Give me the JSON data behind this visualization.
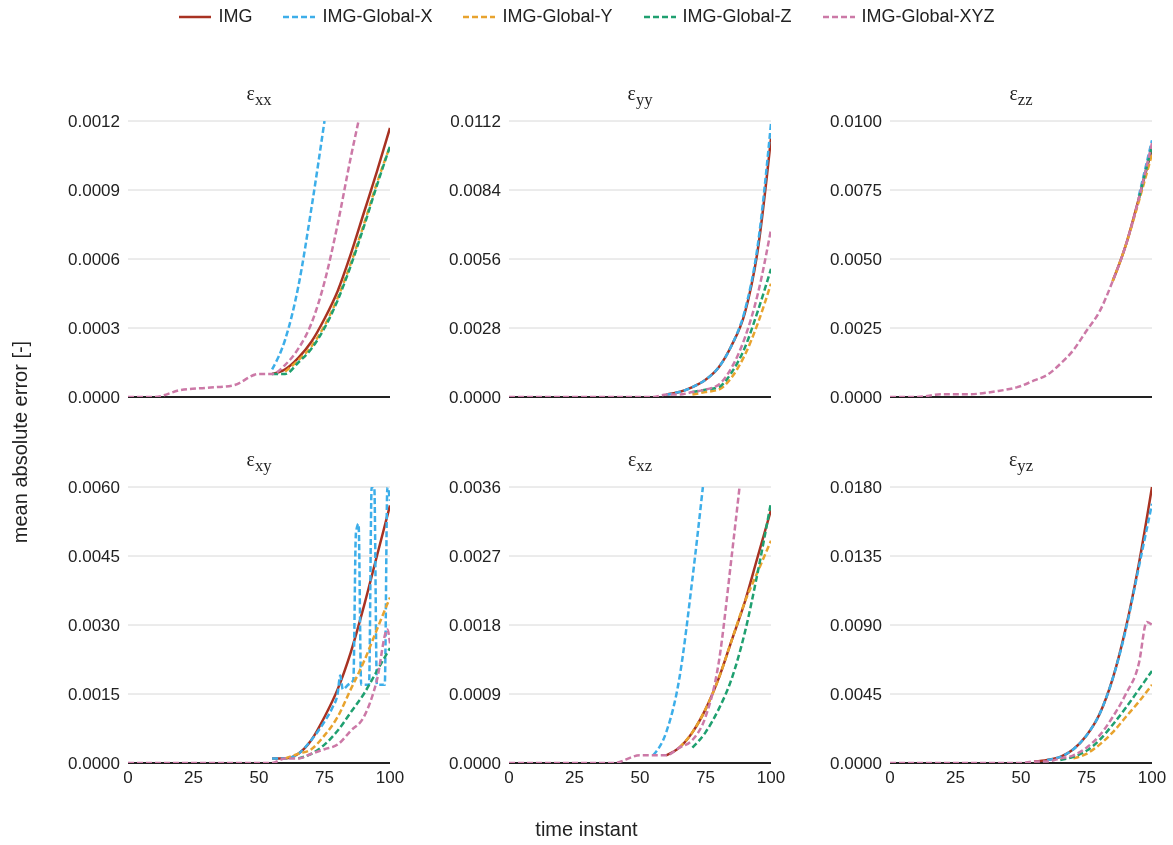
{
  "chart_data": [
    {
      "type": "line",
      "title": "ε$_{xx}$",
      "ylabel": "mean absolute error [-]",
      "legend": "top",
      "grid": "y",
      "tick_labels": "y",
      "xlim": [
        0,
        100
      ],
      "xticks": [
        0,
        25,
        50,
        75,
        100
      ],
      "ylim": [
        0,
        0.0012
      ],
      "yticks": [
        {
          "value": 0,
          "label": "0.0000"
        },
        0.0003,
        0.0006,
        0.0009,
        0.0012
      ],
      "x": [
        55,
        60,
        65,
        70,
        75,
        80,
        85,
        90,
        95,
        100
      ],
      "series": [
        {
          "name": "IMG",
          "color": "#a83222",
          "line_style": "solid",
          "values": [
            0.0001,
            0.00012,
            0.00017,
            0.00024,
            0.00034,
            0.00046,
            0.00062,
            0.0008,
            0.00098,
            0.00117
          ]
        },
        {
          "name": "IMG-Global-X",
          "color": "#3daee9",
          "line_style": "dashed",
          "x": [
            55,
            60,
            65,
            70,
            75
          ],
          "values": [
            0.00012,
            0.00025,
            0.00048,
            0.00082,
            0.0012
          ]
        },
        {
          "name": "IMG-Global-Y",
          "color": "#e8a32e",
          "line_style": "dashed",
          "x": [
            60,
            65,
            70,
            75,
            80,
            85,
            90,
            95,
            100
          ],
          "values": [
            0.00011,
            0.00016,
            0.00022,
            0.00031,
            0.00043,
            0.00058,
            0.00075,
            0.00093,
            0.00109
          ]
        },
        {
          "name": "IMG-Global-Z",
          "color": "#1fa070",
          "line_style": "dashed",
          "values": [
            0.0001,
            0.0001,
            0.00015,
            0.00021,
            0.0003,
            0.00042,
            0.00057,
            0.00074,
            0.00092,
            0.00109
          ]
        },
        {
          "name": "IMG-Global-XYZ",
          "color": "#cc79a7",
          "line_style": "dashed",
          "x": [
            0,
            10,
            20,
            30,
            40,
            50,
            55,
            60,
            65,
            70,
            75,
            80,
            85,
            88
          ],
          "values": [
            0,
            0,
            3e-05,
            4e-05,
            5e-05,
            0.0001,
            0.0001,
            0.00014,
            0.00021,
            0.00032,
            0.0005,
            0.00075,
            0.00104,
            0.0012
          ]
        }
      ]
    },
    {
      "type": "line",
      "title": "ε$_{yy}$",
      "grid": "y",
      "tick_labels": "y",
      "xlim": [
        0,
        100
      ],
      "xticks": [
        0,
        25,
        50,
        75,
        100
      ],
      "ylim": [
        0,
        0.0112
      ],
      "yticks": [
        {
          "value": 0,
          "label": "0.0000"
        },
        0.0028,
        0.0056,
        0.0084,
        0.0112
      ],
      "x": [
        60,
        65,
        70,
        75,
        80,
        85,
        90,
        95,
        100
      ],
      "series": [
        {
          "color": "#a83222",
          "line_style": "solid",
          "values": [
            0.0001,
            0.0002,
            0.0004,
            0.0007,
            0.0012,
            0.0021,
            0.0034,
            0.006,
            0.0105
          ]
        },
        {
          "color": "#3daee9",
          "line_style": "dashed",
          "values": [
            0.0001,
            0.0002,
            0.0004,
            0.0007,
            0.0012,
            0.0021,
            0.0035,
            0.0062,
            0.0111
          ]
        },
        {
          "color": "#e8a32e",
          "line_style": "dashed",
          "x": [
            70,
            75,
            80,
            85,
            90,
            95,
            100
          ],
          "values": [
            0.0001,
            0.0002,
            0.0003,
            0.0008,
            0.0017,
            0.003,
            0.0046
          ]
        },
        {
          "color": "#1fa070",
          "line_style": "dashed",
          "x": [
            70,
            75,
            80,
            85,
            90,
            95,
            100
          ],
          "values": [
            0.0002,
            0.0003,
            0.0004,
            0.001,
            0.002,
            0.0035,
            0.0052
          ]
        },
        {
          "color": "#cc79a7",
          "line_style": "dashed",
          "x": [
            0,
            10,
            20,
            30,
            40,
            50,
            55,
            60,
            65,
            70,
            75,
            80,
            85,
            90,
            95,
            100
          ],
          "values": [
            0,
            0,
            0,
            0,
            0,
            0,
            0,
            0.0001,
            0.0001,
            0.0002,
            0.0003,
            0.0005,
            0.0012,
            0.0024,
            0.0042,
            0.0068
          ]
        }
      ]
    },
    {
      "type": "line",
      "title": "ε$_{zz}$",
      "grid": "y",
      "tick_labels": "y",
      "xlim": [
        0,
        100
      ],
      "xticks": [
        0,
        25,
        50,
        75,
        100
      ],
      "ylim": [
        0,
        0.01
      ],
      "yticks": [
        {
          "value": 0,
          "label": "0.0000"
        },
        0.0025,
        {
          "value": 0.005,
          "label": "0.0050"
        },
        0.0075,
        {
          "value": 0.01,
          "label": "0.0100"
        }
      ],
      "x": [
        85,
        90,
        95,
        100
      ],
      "series": [
        {
          "color": "#a83222",
          "line_style": "solid",
          "values": [
            0.0042,
            0.0055,
            0.0072,
            0.009
          ]
        },
        {
          "color": "#3daee9",
          "line_style": "dashed",
          "x": [
            95,
            100
          ],
          "values": [
            0.0073,
            0.0093
          ]
        },
        {
          "color": "#e8a32e",
          "line_style": "dashed",
          "values": [
            0.0042,
            0.0055,
            0.0071,
            0.0088
          ]
        },
        {
          "color": "#1fa070",
          "line_style": "dashed",
          "x": [
            95,
            100
          ],
          "values": [
            0.0072,
            0.0091
          ]
        },
        {
          "color": "#cc79a7",
          "line_style": "dashed",
          "x": [
            0,
            10,
            20,
            30,
            40,
            50,
            55,
            60,
            65,
            70,
            75,
            80,
            85,
            90,
            95,
            100
          ],
          "values": [
            0,
            0,
            0.0001,
            0.0001,
            0.0002,
            0.0004,
            0.0006,
            0.0008,
            0.0012,
            0.0017,
            0.0024,
            0.0031,
            0.0042,
            0.0055,
            0.0072,
            0.0092
          ]
        }
      ]
    },
    {
      "type": "line",
      "title": "ε$_{xy}$",
      "grid": "y",
      "xlim": [
        0,
        100
      ],
      "xticks": [
        0,
        25,
        50,
        75,
        100
      ],
      "ylim": [
        0,
        0.006
      ],
      "yticks": [
        {
          "value": 0,
          "label": "0.0000"
        },
        0.0015,
        {
          "value": 0.003,
          "label": "0.0030"
        },
        0.0045,
        {
          "value": 0.006,
          "label": "0.0060"
        }
      ],
      "x": [
        55,
        60,
        65,
        70,
        75,
        80,
        85,
        90,
        95,
        100
      ],
      "series": [
        {
          "color": "#a83222",
          "line_style": "solid",
          "values": [
            0.0001,
            0.0001,
            0.0002,
            0.0005,
            0.001,
            0.0016,
            0.0024,
            0.0034,
            0.0045,
            0.0056
          ]
        },
        {
          "color": "#3daee9",
          "line_style": "dashed",
          "x": [
            55,
            60,
            65,
            70,
            75,
            78,
            80,
            81,
            82,
            84,
            86,
            87,
            88,
            89,
            90,
            92,
            93,
            94,
            95,
            97,
            98,
            99,
            100
          ],
          "values": [
            0.0001,
            0.0001,
            0.0002,
            0.0005,
            0.0009,
            0.0012,
            0.0015,
            0.0019,
            0.0016,
            0.0017,
            0.0018,
            0.005,
            0.0052,
            0.0017,
            0.0017,
            0.0017,
            0.006,
            0.006,
            0.0017,
            0.0017,
            0.0017,
            0.006,
            0.0057
          ]
        },
        {
          "color": "#e8a32e",
          "line_style": "dashed",
          "x": [
            60,
            65,
            70,
            75,
            80,
            85,
            90,
            95,
            100
          ],
          "values": [
            0.0001,
            0.0002,
            0.0003,
            0.0006,
            0.001,
            0.0016,
            0.0022,
            0.0029,
            0.0036
          ]
        },
        {
          "color": "#1fa070",
          "line_style": "dashed",
          "x": [
            65,
            70,
            75,
            80,
            85,
            90,
            95,
            100
          ],
          "values": [
            0.0001,
            0.0002,
            0.0004,
            0.0007,
            0.0011,
            0.0015,
            0.002,
            0.0025
          ]
        },
        {
          "color": "#cc79a7",
          "line_style": "dashed",
          "x": [
            0,
            10,
            20,
            30,
            40,
            50,
            55,
            60,
            65,
            70,
            75,
            80,
            85,
            90,
            95,
            99,
            100
          ],
          "values": [
            0,
            0,
            0,
            0,
            0,
            0,
            0,
            0.0001,
            0.0001,
            0.0002,
            0.0003,
            0.0004,
            0.0007,
            0.001,
            0.0018,
            0.0029,
            0.0026
          ]
        }
      ]
    },
    {
      "type": "line",
      "title": "ε$_{xz}$",
      "xlabel": "time instant",
      "grid": "y",
      "xlim": [
        0,
        100
      ],
      "xticks": [
        0,
        25,
        50,
        75,
        100
      ],
      "ylim": [
        0,
        0.0036
      ],
      "yticks": [
        {
          "value": 0,
          "label": "0.0000"
        },
        0.0009,
        0.0018,
        0.0027,
        0.0036
      ],
      "x": [
        60,
        65,
        70,
        75,
        80,
        85,
        90,
        95,
        100
      ],
      "series": [
        {
          "color": "#a83222",
          "line_style": "solid",
          "values": [
            0.0001,
            0.0002,
            0.0004,
            0.0007,
            0.0011,
            0.0016,
            0.0021,
            0.0027,
            0.0033
          ]
        },
        {
          "color": "#3daee9",
          "line_style": "dashed",
          "x": [
            55,
            60,
            65,
            70,
            74
          ],
          "values": [
            0.0001,
            0.0004,
            0.0011,
            0.0024,
            0.0036
          ]
        },
        {
          "color": "#e8a32e",
          "line_style": "dashed",
          "x": [
            65,
            70,
            75,
            80,
            85,
            90,
            95,
            100
          ],
          "values": [
            0.0002,
            0.0004,
            0.0007,
            0.0011,
            0.0016,
            0.0021,
            0.0025,
            0.0029
          ]
        },
        {
          "color": "#1fa070",
          "line_style": "dashed",
          "x": [
            70,
            75,
            80,
            85,
            90,
            95,
            100
          ],
          "values": [
            0.0002,
            0.0004,
            0.0007,
            0.0011,
            0.0017,
            0.0025,
            0.0034
          ]
        },
        {
          "color": "#cc79a7",
          "line_style": "dashed",
          "x": [
            0,
            10,
            20,
            30,
            40,
            50,
            55,
            60,
            65,
            70,
            75,
            80,
            85,
            88
          ],
          "values": [
            0,
            0,
            0,
            0,
            0,
            0.0001,
            0.0001,
            0.0001,
            0.0002,
            0.0003,
            0.0006,
            0.0013,
            0.0027,
            0.0036
          ]
        }
      ]
    },
    {
      "type": "line",
      "title": "ε$_{yz}$",
      "grid": "y",
      "xlim": [
        0,
        100
      ],
      "xticks": [
        0,
        25,
        50,
        75,
        100
      ],
      "ylim": [
        0,
        0.018
      ],
      "yticks": [
        {
          "value": 0,
          "label": "0.0000"
        },
        0.0045,
        {
          "value": 0.009,
          "label": "0.0090"
        },
        0.0135,
        {
          "value": 0.018,
          "label": "0.0180"
        }
      ],
      "x": [
        55,
        60,
        65,
        70,
        75,
        80,
        85,
        90,
        95,
        100
      ],
      "series": [
        {
          "color": "#a83222",
          "line_style": "solid",
          "values": [
            0.0001,
            0.0002,
            0.0004,
            0.0009,
            0.0018,
            0.0032,
            0.0055,
            0.0088,
            0.013,
            0.018
          ]
        },
        {
          "color": "#3daee9",
          "line_style": "dashed",
          "x": [
            60,
            65,
            70,
            75,
            80,
            85,
            90,
            95,
            100
          ],
          "values": [
            0.0002,
            0.0004,
            0.0009,
            0.0018,
            0.0032,
            0.0055,
            0.0087,
            0.0128,
            0.0169
          ]
        },
        {
          "color": "#e8a32e",
          "line_style": "dashed",
          "x": [
            70,
            75,
            80,
            85,
            90,
            95,
            100
          ],
          "values": [
            0.0003,
            0.0006,
            0.0012,
            0.002,
            0.003,
            0.004,
            0.0051
          ]
        },
        {
          "color": "#1fa070",
          "line_style": "dashed",
          "x": [
            65,
            70,
            75,
            80,
            85,
            90,
            95,
            100
          ],
          "values": [
            0.0002,
            0.0004,
            0.0008,
            0.0015,
            0.0025,
            0.0036,
            0.0048,
            0.006
          ]
        },
        {
          "color": "#cc79a7",
          "line_style": "dashed",
          "x": [
            0,
            10,
            20,
            30,
            40,
            50,
            55,
            60,
            65,
            70,
            75,
            80,
            85,
            90,
            95,
            98,
            100
          ],
          "values": [
            0,
            0,
            0,
            0,
            0,
            0,
            0.0001,
            0.0001,
            0.0003,
            0.0005,
            0.001,
            0.0018,
            0.003,
            0.0045,
            0.0065,
            0.0092,
            0.009
          ]
        }
      ]
    }
  ]
}
